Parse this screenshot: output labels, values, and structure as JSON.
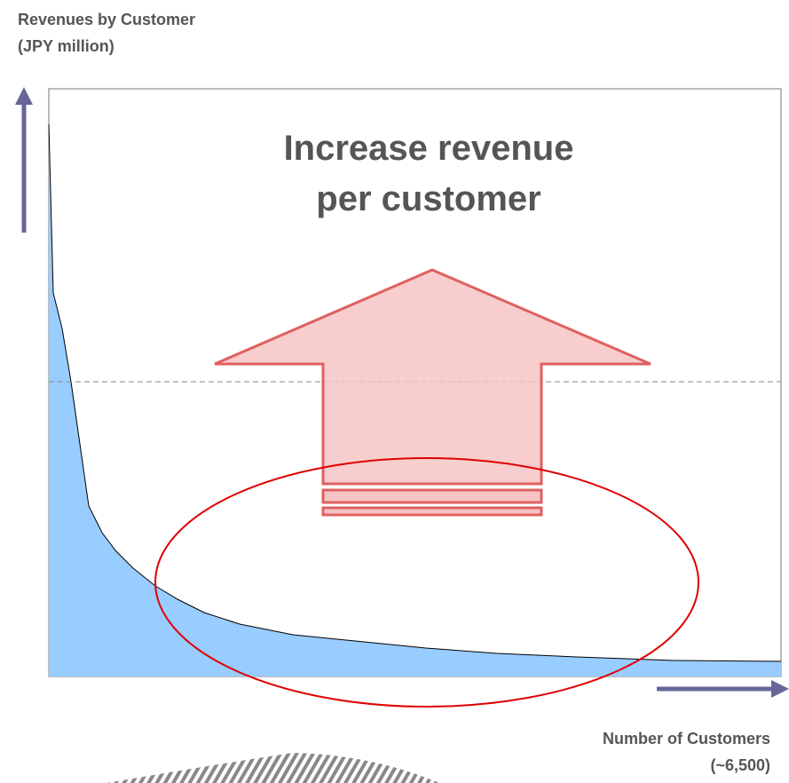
{
  "y_axis_label": {
    "line1": "Revenues by Customer",
    "line2": "(JPY million)"
  },
  "headline": {
    "line1": "Increase revenue",
    "line2": "per customer"
  },
  "x_axis_label": {
    "line1": "Number of Customers",
    "line2": "(~6,500)"
  }
}
